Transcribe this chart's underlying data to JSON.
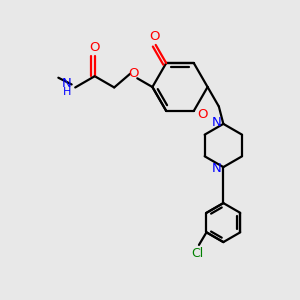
{
  "bg_color": "#e8e8e8",
  "bond_color": "#000000",
  "atom_colors": {
    "O": "#ff0000",
    "N": "#0000ff",
    "Cl": "#008000",
    "C": "#000000"
  }
}
